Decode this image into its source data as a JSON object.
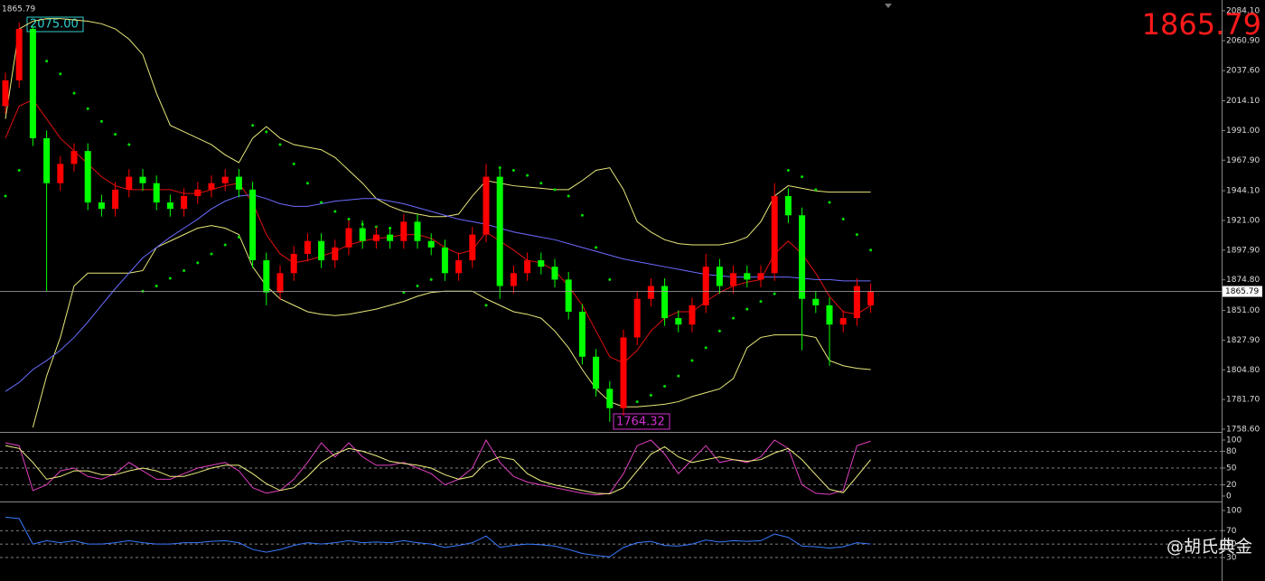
{
  "watermark": "@胡氏典金",
  "chart_data": [
    {
      "type": "candlestick",
      "current_price": 1865.79,
      "high_label": "2075.00",
      "low_label": "1764.32",
      "up_color": "#ff0000",
      "down_color": "#00ff00",
      "ylim": [
        1757.2,
        2092.5
      ],
      "yticks": [
        {
          "value": 2084.1,
          "label": "2084.10"
        },
        {
          "value": 2060.9,
          "label": "2060.90"
        },
        {
          "value": 2037.6,
          "label": "2037.60"
        },
        {
          "value": 2014.1,
          "label": "2014.10"
        },
        {
          "value": 1991,
          "label": "1991.00"
        },
        {
          "value": 1967.9,
          "label": "1967.90"
        },
        {
          "value": 1944.1,
          "label": "1944.10"
        },
        {
          "value": 1921,
          "label": "1921.00"
        },
        {
          "value": 1897.9,
          "label": "1897.90"
        },
        {
          "value": 1874.8,
          "label": "1874.80"
        },
        {
          "value": 1851,
          "label": "1851.00"
        },
        {
          "value": 1827.9,
          "label": "1827.90"
        },
        {
          "value": 1804.8,
          "label": "1804.80"
        },
        {
          "value": 1781.7,
          "label": "1781.70"
        },
        {
          "value": 1758.6,
          "label": "1758.60"
        }
      ],
      "open": [
        2010,
        2030,
        2070,
        1985,
        1950,
        1965,
        1975,
        1935,
        1930,
        1945,
        1955,
        1950,
        1935,
        1930,
        1940,
        1945,
        1950,
        1955,
        1945,
        1890,
        1865,
        1880,
        1895,
        1905,
        1890,
        1900,
        1915,
        1905,
        1910,
        1905,
        1920,
        1905,
        1900,
        1880,
        1890,
        1910,
        1955,
        1870,
        1880,
        1890,
        1885,
        1875,
        1850,
        1815,
        1790,
        1775,
        1830,
        1860,
        1870,
        1845,
        1840,
        1855,
        1885,
        1870,
        1880,
        1875,
        1880,
        1940,
        1925,
        1860,
        1855,
        1840,
        1845,
        1855
      ],
      "high": [
        2036,
        2075,
        2072,
        1991,
        1971,
        1981,
        1981,
        1941,
        1951,
        1961,
        1961,
        1956,
        1941,
        1946,
        1951,
        1956,
        1961,
        1961,
        1951,
        1896,
        1886,
        1901,
        1911,
        1911,
        1906,
        1921,
        1921,
        1916,
        1916,
        1926,
        1926,
        1911,
        1906,
        1896,
        1916,
        1965,
        1961,
        1886,
        1896,
        1896,
        1891,
        1881,
        1856,
        1821,
        1796,
        1836,
        1866,
        1876,
        1876,
        1851,
        1861,
        1895,
        1891,
        1886,
        1886,
        1886,
        1950,
        1946,
        1931,
        1866,
        1861,
        1851,
        1876,
        1872
      ],
      "low": [
        2004,
        2024,
        1979,
        1866,
        1944,
        1959,
        1929,
        1924,
        1924,
        1939,
        1944,
        1929,
        1924,
        1924,
        1934,
        1939,
        1944,
        1939,
        1884,
        1855,
        1859,
        1874,
        1889,
        1884,
        1884,
        1894,
        1899,
        1899,
        1899,
        1899,
        1899,
        1894,
        1874,
        1874,
        1884,
        1904,
        1860,
        1864,
        1874,
        1879,
        1869,
        1844,
        1809,
        1784,
        1764.32,
        1769,
        1824,
        1854,
        1839,
        1834,
        1834,
        1849,
        1864,
        1864,
        1869,
        1869,
        1874,
        1919,
        1820,
        1849,
        1808,
        1834,
        1839,
        1849
      ],
      "close": [
        2030,
        2070,
        1985,
        1950,
        1965,
        1975,
        1935,
        1930,
        1945,
        1955,
        1950,
        1935,
        1930,
        1940,
        1945,
        1950,
        1955,
        1945,
        1890,
        1865,
        1880,
        1895,
        1905,
        1890,
        1900,
        1915,
        1905,
        1910,
        1905,
        1920,
        1905,
        1900,
        1880,
        1890,
        1910,
        1955,
        1870,
        1880,
        1890,
        1885,
        1875,
        1850,
        1815,
        1790,
        1775,
        1830,
        1860,
        1870,
        1845,
        1840,
        1855,
        1885,
        1870,
        1880,
        1875,
        1880,
        1940,
        1925,
        1860,
        1855,
        1840,
        1845,
        1870,
        1865.79
      ],
      "overlays": [
        {
          "style": "line",
          "color": "#e8e87a",
          "values": [
            2000,
            2070,
            2076,
            2078,
            2078,
            2077,
            2076,
            2074,
            2070,
            2062,
            2050,
            2020,
            1995,
            1990,
            1985,
            1980,
            1972,
            1966,
            1985,
            1994,
            1985,
            1980,
            1978,
            1976,
            1970,
            1960,
            1950,
            1938,
            1932,
            1928,
            1926,
            1924,
            1924,
            1926,
            1940,
            1952,
            1950,
            1948,
            1947,
            1946,
            1945,
            1945,
            1952,
            1960,
            1962,
            1945,
            1920,
            1912,
            1906,
            1903,
            1902,
            1902,
            1902,
            1904,
            1908,
            1920,
            1940,
            1948,
            1946,
            1944,
            1943,
            1943,
            1943,
            1943
          ]
        },
        {
          "style": "line",
          "color": "#e8e87a",
          "values": [
            null,
            null,
            1760,
            1800,
            1830,
            1870,
            1880,
            1880,
            1880,
            1880,
            1882,
            1900,
            1905,
            1910,
            1915,
            1917,
            1915,
            1910,
            1885,
            1870,
            1860,
            1855,
            1850,
            1848,
            1847,
            1848,
            1850,
            1852,
            1855,
            1858,
            1862,
            1865,
            1866,
            1866,
            1866,
            1860,
            1855,
            1850,
            1848,
            1845,
            1835,
            1822,
            1805,
            1790,
            1780,
            1776,
            1776,
            1777,
            1778,
            1780,
            1784,
            1787,
            1790,
            1798,
            1822,
            1830,
            1832,
            1832,
            1832,
            1830,
            1812,
            1808,
            1806,
            1805
          ]
        },
        {
          "style": "line",
          "color": "#e01010",
          "values": [
            1985,
            2010,
            2015,
            2000,
            1985,
            1975,
            1965,
            1955,
            1948,
            1945,
            1945,
            1945,
            1945,
            1942,
            1942,
            1945,
            1948,
            1950,
            1935,
            1910,
            1895,
            1888,
            1890,
            1893,
            1897,
            1902,
            1905,
            1907,
            1908,
            1910,
            1910,
            1907,
            1900,
            1895,
            1898,
            1912,
            1905,
            1898,
            1890,
            1888,
            1882,
            1870,
            1855,
            1835,
            1815,
            1810,
            1820,
            1835,
            1845,
            1850,
            1850,
            1858,
            1865,
            1870,
            1873,
            1875,
            1895,
            1905,
            1895,
            1880,
            1862,
            1850,
            1848,
            1855
          ]
        },
        {
          "style": "line",
          "color": "#6b6bff",
          "values": [
            1788,
            1795,
            1805,
            1812,
            1820,
            1830,
            1842,
            1855,
            1868,
            1880,
            1892,
            1900,
            1908,
            1915,
            1922,
            1930,
            1936,
            1940,
            1941,
            1938,
            1934,
            1932,
            1932,
            1934,
            1936,
            1937,
            1938,
            1938,
            1936,
            1934,
            1931,
            1928,
            1925,
            1922,
            1920,
            1918,
            1915,
            1912,
            1910,
            1908,
            1906,
            1903,
            1900,
            1897,
            1894,
            1891,
            1889,
            1887,
            1885,
            1883,
            1881,
            1879,
            1878,
            1877,
            1877,
            1877,
            1877,
            1877,
            1876,
            1875,
            1875,
            1874,
            1874,
            1874
          ]
        },
        {
          "style": "dots",
          "color": "#00e000",
          "values": [
            1940,
            1960,
            2055,
            2045,
            2035,
            2020,
            2008,
            1998,
            1988,
            1980,
            1866,
            1870,
            1876,
            1882,
            1888,
            1895,
            1902,
            1908,
            1995,
            1990,
            1980,
            1965,
            1950,
            1935,
            1928,
            1922,
            1918,
            1916,
            1915,
            1865,
            1870,
            1875,
            1882,
            1888,
            1893,
            1855,
            1962,
            1960,
            1956,
            1950,
            1945,
            1940,
            1925,
            1900,
            1875,
            1778,
            1780,
            1785,
            1792,
            1800,
            1812,
            1822,
            1835,
            1845,
            1852,
            1858,
            1864,
            1960,
            1955,
            1945,
            1935,
            1922,
            1910,
            1898
          ]
        }
      ]
    },
    {
      "type": "line",
      "ylim": [
        -6.5,
        109.7
      ],
      "yticks": [
        100,
        80,
        50,
        20,
        0
      ],
      "grid": true,
      "series": [
        {
          "color": "#e040c0",
          "values": [
            95,
            90,
            10,
            20,
            45,
            50,
            35,
            30,
            40,
            60,
            45,
            30,
            30,
            40,
            50,
            55,
            60,
            45,
            15,
            5,
            10,
            30,
            60,
            95,
            70,
            95,
            70,
            55,
            55,
            60,
            50,
            40,
            20,
            30,
            50,
            100,
            60,
            35,
            25,
            20,
            15,
            10,
            5,
            2,
            5,
            40,
            90,
            100,
            75,
            40,
            65,
            90,
            60,
            65,
            60,
            70,
            100,
            85,
            20,
            5,
            3,
            10,
            90,
            98
          ]
        },
        {
          "color": "#f0f080",
          "values": [
            90,
            85,
            60,
            30,
            35,
            45,
            45,
            38,
            38,
            45,
            50,
            45,
            35,
            35,
            42,
            50,
            55,
            55,
            40,
            22,
            10,
            15,
            35,
            60,
            75,
            85,
            80,
            72,
            62,
            58,
            55,
            50,
            38,
            30,
            35,
            60,
            70,
            65,
            40,
            27,
            20,
            15,
            10,
            5,
            4,
            15,
            45,
            75,
            88,
            70,
            60,
            65,
            70,
            65,
            62,
            65,
            77,
            85,
            65,
            38,
            12,
            6,
            35,
            65
          ]
        }
      ]
    },
    {
      "type": "line",
      "ylim": [
        -2.3,
        109.4
      ],
      "yticks": [
        100,
        70,
        50,
        30
      ],
      "grid": true,
      "series": [
        {
          "color": "#3a7aff",
          "values": [
            90,
            88,
            50,
            55,
            52,
            55,
            50,
            50,
            52,
            55,
            52,
            50,
            50,
            52,
            52,
            54,
            55,
            52,
            42,
            38,
            42,
            48,
            52,
            50,
            52,
            55,
            52,
            53,
            52,
            55,
            52,
            50,
            45,
            48,
            52,
            62,
            45,
            48,
            50,
            49,
            47,
            42,
            36,
            33,
            31,
            45,
            52,
            54,
            48,
            47,
            50,
            56,
            53,
            55,
            54,
            55,
            65,
            60,
            47,
            46,
            44,
            46,
            52,
            50
          ]
        }
      ]
    }
  ]
}
